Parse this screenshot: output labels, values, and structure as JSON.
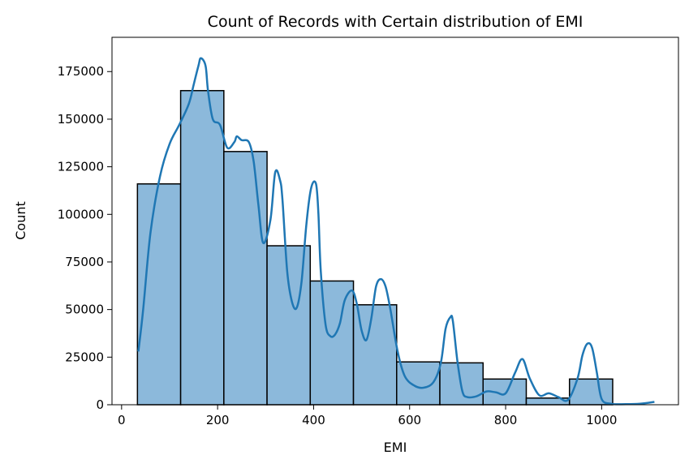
{
  "chart_data": {
    "type": "histogram",
    "title": "Count of Records with Certain distribution of EMI",
    "xlabel": "EMI",
    "ylabel": "Count",
    "xlim": [
      -20,
      1160
    ],
    "ylim": [
      0,
      193000
    ],
    "x_ticks": [
      0,
      200,
      400,
      600,
      800,
      1000
    ],
    "y_ticks": [
      0,
      25000,
      50000,
      75000,
      100000,
      125000,
      150000,
      175000
    ],
    "grid": false,
    "legend": "none",
    "bins": [
      {
        "x0": 33,
        "x1": 123,
        "count": 116000
      },
      {
        "x0": 123,
        "x1": 213,
        "count": 165000
      },
      {
        "x0": 213,
        "x1": 303,
        "count": 133000
      },
      {
        "x0": 303,
        "x1": 393,
        "count": 83500
      },
      {
        "x0": 393,
        "x1": 483,
        "count": 65000
      },
      {
        "x0": 483,
        "x1": 573,
        "count": 52500
      },
      {
        "x0": 573,
        "x1": 663,
        "count": 22500
      },
      {
        "x0": 663,
        "x1": 753,
        "count": 22000
      },
      {
        "x0": 753,
        "x1": 843,
        "count": 13500
      },
      {
        "x0": 843,
        "x1": 933,
        "count": 3500
      },
      {
        "x0": 933,
        "x1": 1023,
        "count": 13500
      }
    ],
    "kde": {
      "x": [
        35,
        45,
        60,
        80,
        100,
        120,
        140,
        150,
        160,
        165,
        175,
        180,
        190,
        205,
        220,
        235,
        240,
        250,
        265,
        275,
        285,
        295,
        310,
        320,
        330,
        335,
        345,
        355,
        365,
        375,
        385,
        395,
        405,
        410,
        415,
        425,
        435,
        445,
        455,
        465,
        480,
        490,
        500,
        510,
        520,
        530,
        540,
        550,
        560,
        575,
        590,
        610,
        630,
        650,
        665,
        675,
        685,
        690,
        700,
        710,
        720,
        740,
        760,
        780,
        800,
        820,
        835,
        850,
        870,
        890,
        910,
        930,
        950,
        960,
        970,
        980,
        990,
        1000,
        1020,
        1050,
        1080,
        1110
      ],
      "y": [
        28000,
        50000,
        90000,
        120000,
        137000,
        147000,
        158000,
        168000,
        178000,
        182000,
        178000,
        165000,
        150000,
        147000,
        135000,
        138000,
        141000,
        139000,
        138000,
        128000,
        105000,
        85000,
        97000,
        122000,
        118000,
        108000,
        70000,
        54000,
        51000,
        65000,
        95000,
        114000,
        116000,
        100000,
        70000,
        42000,
        36000,
        37000,
        43000,
        55000,
        60000,
        53000,
        39000,
        34000,
        45000,
        62000,
        66000,
        62000,
        50000,
        28000,
        15000,
        10000,
        9000,
        12000,
        22000,
        40000,
        46000,
        44000,
        22000,
        7000,
        4000,
        4500,
        7000,
        6500,
        6000,
        17000,
        24000,
        14000,
        5000,
        6000,
        4000,
        2500,
        14000,
        26000,
        32000,
        30000,
        17000,
        3000,
        500,
        300,
        500,
        1500
      ]
    },
    "colors": {
      "bar_fill": "#8cb9db",
      "bar_edge": "#000000",
      "kde_line": "#1f77b4"
    }
  }
}
